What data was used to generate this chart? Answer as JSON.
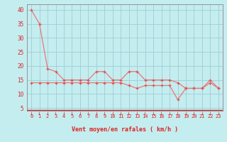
{
  "xlabel": "Vent moyen/en rafales ( km/h )",
  "background_color": "#c4edf0",
  "grid_color": "#9ecdd4",
  "line_color": "#e87878",
  "marker_color": "#e05050",
  "arrow_color": "#dd2222",
  "axis_color": "#888888",
  "text_color": "#dd2222",
  "xlim": [
    -0.5,
    23.5
  ],
  "ylim": [
    4,
    42
  ],
  "yticks": [
    5,
    10,
    15,
    20,
    25,
    30,
    35,
    40
  ],
  "xticks": [
    0,
    1,
    2,
    3,
    4,
    5,
    6,
    7,
    8,
    9,
    10,
    11,
    12,
    13,
    14,
    15,
    16,
    17,
    18,
    19,
    20,
    21,
    22,
    23
  ],
  "upper_line": [
    40,
    35,
    19,
    18,
    15,
    15,
    15,
    15,
    18,
    18,
    15,
    15,
    18,
    18,
    15,
    15,
    15,
    15,
    14,
    12,
    12,
    12,
    15,
    12
  ],
  "lower_line": [
    14,
    14,
    14,
    14,
    14,
    14,
    14,
    14,
    14,
    14,
    14,
    14,
    13,
    12,
    13,
    13,
    13,
    13,
    8,
    12,
    12,
    12,
    14,
    12
  ],
  "x_values": [
    0,
    1,
    2,
    3,
    4,
    5,
    6,
    7,
    8,
    9,
    10,
    11,
    12,
    13,
    14,
    15,
    16,
    17,
    18,
    19,
    20,
    21,
    22,
    23
  ]
}
